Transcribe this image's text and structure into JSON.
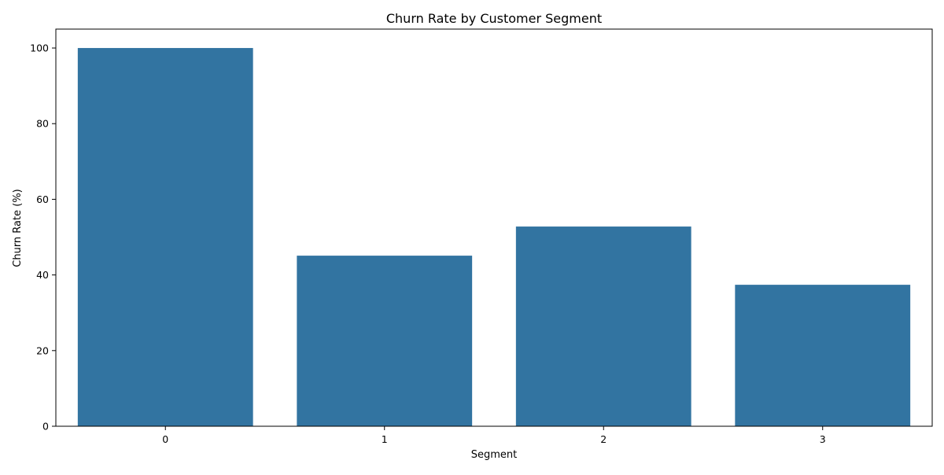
{
  "chart_data": {
    "type": "bar",
    "title": "Churn Rate by Customer Segment",
    "xlabel": "Segment",
    "ylabel": "Churn Rate (%)",
    "categories": [
      "0",
      "1",
      "2",
      "3"
    ],
    "series": [
      {
        "values": [
          100.0,
          45.1,
          52.8,
          37.4
        ]
      }
    ],
    "ylim": [
      0,
      105
    ],
    "yticks": [
      0,
      20,
      40,
      60,
      80,
      100
    ],
    "bar_color": "#3274a1",
    "grid": false,
    "legend": "none"
  }
}
